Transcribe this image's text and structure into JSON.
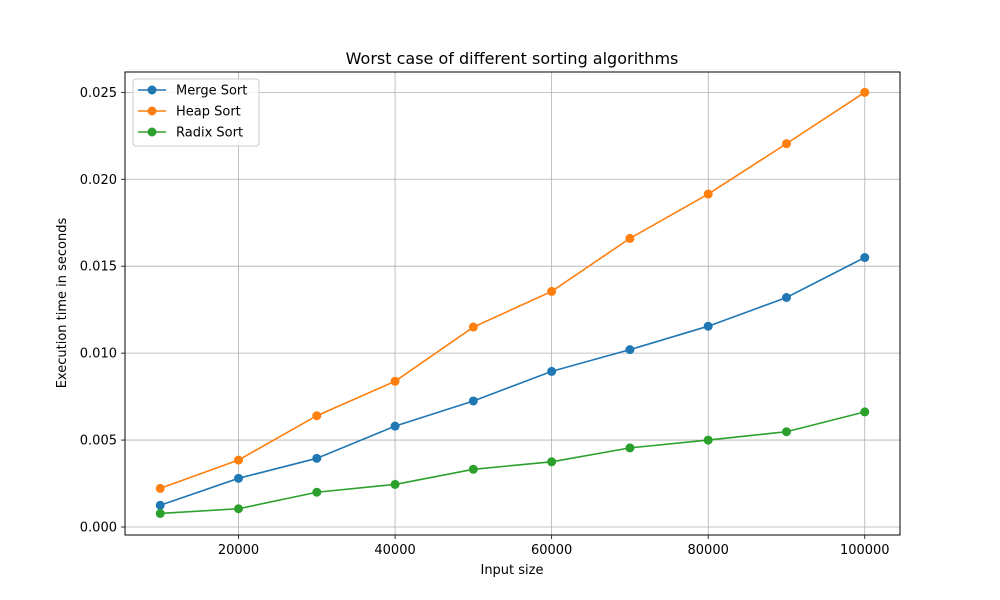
{
  "chart_data": {
    "type": "line",
    "title": "Worst case of different sorting algorithms",
    "xlabel": "Input size",
    "ylabel": "Execution time in seconds",
    "x": [
      10000,
      20000,
      30000,
      40000,
      50000,
      60000,
      70000,
      80000,
      90000,
      100000
    ],
    "xlim": [
      5500,
      104500
    ],
    "ylim": [
      -0.00046,
      0.02617
    ],
    "xticks": [
      20000,
      40000,
      60000,
      80000,
      100000
    ],
    "xtick_labels": [
      "20000",
      "40000",
      "60000",
      "80000",
      "100000"
    ],
    "yticks": [
      0.0,
      0.005,
      0.01,
      0.015,
      0.02,
      0.025
    ],
    "ytick_labels": [
      "0.000",
      "0.005",
      "0.010",
      "0.015",
      "0.020",
      "0.025"
    ],
    "grid": true,
    "legend_position": "top-left",
    "series": [
      {
        "name": "Merge Sort",
        "color": "#1f77b4",
        "values": [
          0.00125,
          0.0028,
          0.00395,
          0.0058,
          0.00725,
          0.00895,
          0.0102,
          0.01155,
          0.0132,
          0.0155
        ]
      },
      {
        "name": "Heap Sort",
        "color": "#ff7f0e",
        "values": [
          0.00222,
          0.00385,
          0.0064,
          0.00838,
          0.0115,
          0.01355,
          0.0166,
          0.01915,
          0.02205,
          0.025
        ]
      },
      {
        "name": "Radix Sort",
        "color": "#2ca02c",
        "values": [
          0.00078,
          0.00105,
          0.002,
          0.00245,
          0.00332,
          0.00375,
          0.00455,
          0.005,
          0.00548,
          0.00662
        ]
      }
    ]
  }
}
